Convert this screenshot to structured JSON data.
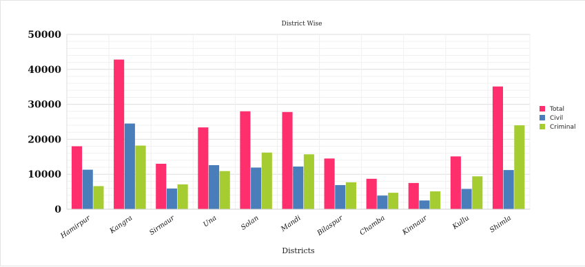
{
  "chart_data": {
    "type": "bar",
    "title": "District Wise",
    "xlabel": "Districts",
    "ylabel": "",
    "ylim": [
      0,
      50000
    ],
    "yticks": [
      0,
      10000,
      20000,
      30000,
      40000,
      50000
    ],
    "grid": true,
    "legend_position": "right",
    "categories": [
      "Hamirpur",
      "Kangra",
      "Sirmaur",
      "Una",
      "Solan",
      "Mandi",
      "Bilaspur",
      "Chamba",
      "Kinnaur",
      "Kullu",
      "Shimla"
    ],
    "series": [
      {
        "name": "Total",
        "color": "#ff2e6d",
        "values": [
          18000,
          42800,
          13000,
          23400,
          28000,
          27800,
          14500,
          8700,
          7500,
          15100,
          35100
        ]
      },
      {
        "name": "Civil",
        "color": "#4a7ebb",
        "values": [
          11300,
          24500,
          5900,
          12600,
          11900,
          12200,
          6900,
          3900,
          2500,
          5800,
          11200
        ]
      },
      {
        "name": "Criminal",
        "color": "#a5cd32",
        "values": [
          6600,
          18200,
          7100,
          10900,
          16200,
          15700,
          7700,
          4700,
          5100,
          9400,
          24000
        ]
      }
    ]
  }
}
